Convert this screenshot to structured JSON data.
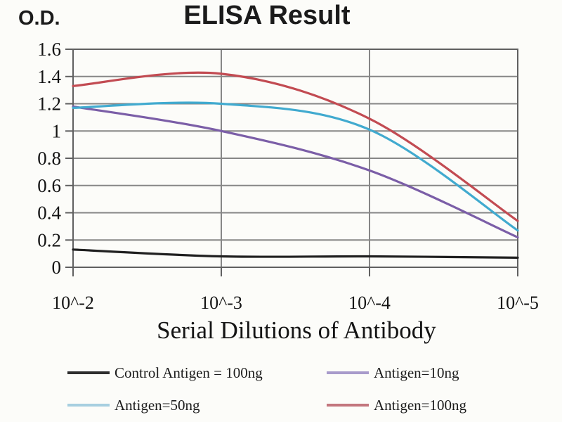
{
  "chart": {
    "title": "ELISA Result",
    "y_axis_title": "O.D.",
    "x_axis_title": "Serial Dilutions of Antibody"
  },
  "chart_data": {
    "type": "line",
    "title": "ELISA Result",
    "xlabel": "Serial Dilutions of Antibody",
    "ylabel": "O.D.",
    "x_tick_labels": [
      "10^-2",
      "10^-3",
      "10^-4",
      "10^-5"
    ],
    "y_tick_labels": [
      "1.6",
      "1.4",
      "1.2",
      "1",
      "0.8",
      "0.6",
      "0.4",
      "0.2",
      "0"
    ],
    "ylim": [
      0,
      1.6
    ],
    "y_step": 0.2,
    "grid": true,
    "legend_position": "bottom",
    "colors": {
      "grid": "#868686",
      "frame": "#606060",
      "text": "#171717",
      "background": "#fcfcf9"
    },
    "series": [
      {
        "name": "Control Antigen = 100ng",
        "color": "#1f1f1f",
        "legend_color": "#2e2e2e",
        "values": [
          0.13,
          0.08,
          0.08,
          0.07
        ]
      },
      {
        "name": "Antigen=10ng",
        "color": "#7b5ea7",
        "legend_color": "#a89bcb",
        "values": [
          1.18,
          1.0,
          0.71,
          0.22
        ]
      },
      {
        "name": "Antigen=50ng",
        "color": "#41aacf",
        "legend_color": "#a7cfe0",
        "values": [
          1.17,
          1.2,
          1.01,
          0.27
        ]
      },
      {
        "name": "Antigen=100ng",
        "color": "#c24b52",
        "legend_color": "#c3767e",
        "values": [
          1.33,
          1.42,
          1.09,
          0.34
        ]
      }
    ]
  }
}
